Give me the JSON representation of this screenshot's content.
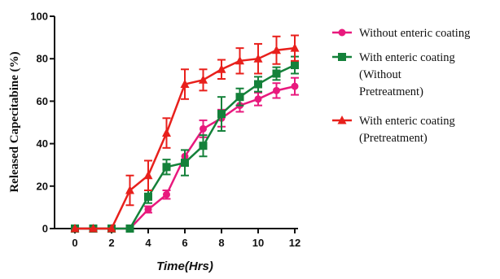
{
  "chart_data": {
    "type": "line",
    "title": "",
    "xlabel": "Time(Hrs)",
    "ylabel": "Released Capecitabine (%)",
    "xlim": [
      0,
      12
    ],
    "ylim": [
      0,
      100
    ],
    "xticks": [
      "0",
      "2",
      "4",
      "6",
      "8",
      "10",
      "12"
    ],
    "yticks": [
      "0",
      "20",
      "40",
      "60",
      "80",
      "100"
    ],
    "grid": false,
    "legend_position": "right",
    "x": [
      0,
      1,
      2,
      3,
      4,
      5,
      6,
      7,
      8,
      9,
      10,
      11,
      12
    ],
    "series": [
      {
        "name": "Without enteric coating",
        "legend_lines": [
          "Without enteric coating"
        ],
        "color": "#e8197d",
        "marker": "circle",
        "values": [
          0,
          0,
          0,
          0,
          9,
          16,
          34,
          47,
          52,
          58,
          61,
          65,
          67
        ],
        "errors": [
          0,
          0,
          0,
          0,
          1.5,
          2,
          3,
          4,
          4,
          3,
          3,
          3.5,
          4
        ]
      },
      {
        "name": "With enteric coating (Without Pretreatment)",
        "legend_lines": [
          "With enteric coating",
          "(Without",
          "Pretreatment)"
        ],
        "color": "#14813a",
        "marker": "square",
        "values": [
          0,
          0,
          0,
          0,
          15,
          29,
          31,
          39,
          54,
          62,
          68,
          73,
          77
        ],
        "errors": [
          0,
          0,
          0,
          0,
          3,
          3.5,
          6,
          5,
          8,
          4,
          3.5,
          3,
          4
        ]
      },
      {
        "name": "With enteric coating (Pretreatment)",
        "legend_lines": [
          "With enteric coating",
          "(Pretreatment)"
        ],
        "color": "#e8201c",
        "marker": "triangle",
        "values": [
          0,
          0,
          0,
          18,
          25,
          45,
          68,
          70,
          75,
          79,
          80,
          84,
          85
        ],
        "errors": [
          0,
          0,
          0,
          7,
          7,
          7,
          7,
          5,
          4.5,
          6,
          7,
          6.5,
          6
        ]
      }
    ]
  }
}
